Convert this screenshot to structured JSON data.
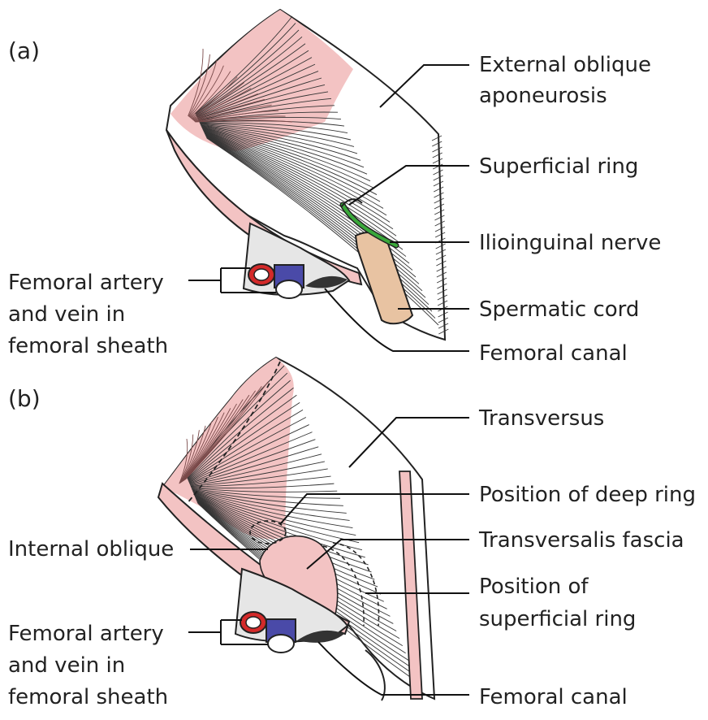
{
  "panels": {
    "a": {
      "tag": "(a)",
      "labels": {
        "external_oblique_1": "External oblique",
        "external_oblique_2": "aponeurosis",
        "superficial_ring": "Superficial ring",
        "ilioinguinal_nerve": "Ilioinguinal nerve",
        "spermatic_cord": "Spermatic cord",
        "femoral_canal": "Femoral canal",
        "femoral_vessels_1": "Femoral artery",
        "femoral_vessels_2": "and vein in",
        "femoral_vessels_3": "femoral sheath"
      }
    },
    "b": {
      "tag": "(b)",
      "labels": {
        "transversus": "Transversus",
        "deep_ring": "Position of deep ring",
        "transversalis_fascia": "Transversalis fascia",
        "superficial_ring_1": "Position of",
        "superficial_ring_2": "superficial ring",
        "femoral_canal": "Femoral canal",
        "internal_oblique": "Internal oblique",
        "femoral_vessels_1": "Femoral artery",
        "femoral_vessels_2": "and vein in",
        "femoral_vessels_3": "femoral sheath"
      }
    }
  },
  "colors": {
    "muscle": "#f3c3c3",
    "artery": "#d42a2a",
    "vein": "#4a4aa8",
    "nerve": "#3aa83a",
    "cord": "#e8c3a2",
    "sheath": "#e6e6e6"
  }
}
